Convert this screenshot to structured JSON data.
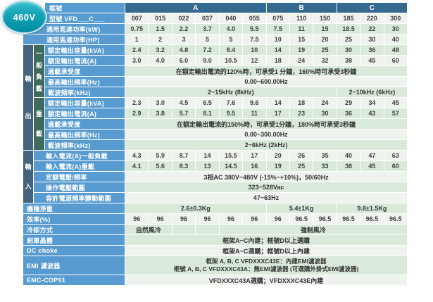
{
  "badge": {
    "text": "460V"
  },
  "colors": {
    "label_blue": "#579bd0",
    "header_blue": "#356a90",
    "band_slate": "#46637e",
    "band_teal": "#416a5e",
    "row_green": "#daeada",
    "row_white": "#eff3ee",
    "badge_teal": "#13a2b6"
  },
  "table": {
    "frame_row": {
      "label": "框號",
      "groups": [
        {
          "text": "A",
          "span": 6
        },
        {
          "text": "B",
          "span": 3
        },
        {
          "text": "C",
          "span": 3
        }
      ]
    },
    "bands": {
      "output": "輸出",
      "input": "輸入",
      "general": "一般負載",
      "heavy": "重載"
    },
    "rows": [
      {
        "label": "型號 VFD___C___",
        "zone": "top",
        "zebra": "w",
        "values": [
          "007",
          "015",
          "022",
          "037",
          "040",
          "055",
          "075",
          "110",
          "150",
          "185",
          "220",
          "300"
        ]
      },
      {
        "label": "適用馬達功率(kW)",
        "zone": "plain",
        "zebra": "g",
        "values": [
          "0.75",
          "1.5",
          "2.2",
          "3.7",
          "4.0",
          "5.5",
          "7.5",
          "11",
          "15",
          "18.5",
          "22",
          "30"
        ]
      },
      {
        "label": "適用馬達功率(HP)",
        "zone": "plain",
        "zebra": "w",
        "values": [
          "1",
          "2",
          "3",
          "5",
          "5",
          "7.5",
          "10",
          "15",
          "20",
          "25",
          "30",
          "40"
        ]
      },
      {
        "label": "額定輸出容量(kVA)",
        "zone": "out",
        "zebra": "g",
        "values": [
          "2.4",
          "3.2",
          "4.8",
          "7.2",
          "8.4",
          "10",
          "14",
          "19",
          "25",
          "30",
          "36",
          "48"
        ]
      },
      {
        "label": "額定輸出電流(A)",
        "zone": "out",
        "zebra": "w",
        "values": [
          "3.0",
          "4.0",
          "6.0",
          "9.0",
          "10.5",
          "12",
          "18",
          "24",
          "32",
          "38",
          "45",
          "60"
        ]
      },
      {
        "label": "過載承受度",
        "zone": "out",
        "zebra": "g",
        "spans": [
          {
            "text": "在額定輸出電流的120%時，可承受1 分鐘，160%時可承受3秒鐘",
            "span": 12
          }
        ]
      },
      {
        "label": "最高輸出頻率(Hz)",
        "zone": "out",
        "zebra": "w",
        "spans": [
          {
            "text": "0.00~600.00Hz",
            "span": 12
          }
        ]
      },
      {
        "label": "載波頻率(kHz)",
        "zone": "out",
        "zebra": "g",
        "spans": [
          {
            "text": "2~15kHz (8kHz)",
            "span": 9
          },
          {
            "text": "2~10kHz (6kHz)",
            "span": 3
          }
        ]
      },
      {
        "label": "額定輸出容量(kVA)",
        "zone": "out",
        "zebra": "w",
        "values": [
          "2.3",
          "3.0",
          "4.5",
          "6.5",
          "7.6",
          "9.6",
          "14",
          "18",
          "24",
          "29",
          "34",
          "45"
        ]
      },
      {
        "label": "額定輸出電流(A)",
        "zone": "out",
        "zebra": "g",
        "values": [
          "2.9",
          "3.8",
          "5.7",
          "8.1",
          "9.5",
          "11",
          "17",
          "23",
          "30",
          "36",
          "43",
          "57"
        ]
      },
      {
        "label": "過載承受度",
        "zone": "out",
        "zebra": "g",
        "spans": [
          {
            "text": "在額定輸出電流的150%時，可承受1分鐘，180%時可承受3秒鐘",
            "span": 12
          }
        ]
      },
      {
        "label": "最高輸出頻率(Hz)",
        "zone": "out",
        "zebra": "w",
        "spans": [
          {
            "text": "0.00~300.00Hz",
            "span": 12
          }
        ]
      },
      {
        "label": "載波頻率(kHz)",
        "zone": "out",
        "zebra": "g",
        "spans": [
          {
            "text": "2~6kHz (2kHz)",
            "span": 12
          }
        ]
      },
      {
        "label": "輸入電流(A)一般負載",
        "zone": "in",
        "zebra": "w",
        "values": [
          "4.3",
          "5.9",
          "8.7",
          "14",
          "15.5",
          "17",
          "20",
          "26",
          "35",
          "40",
          "47",
          "63"
        ]
      },
      {
        "label": "輸入電流(A)重載",
        "zone": "in",
        "zebra": "g",
        "values": [
          "4.1",
          "5.6",
          "8.3",
          "13",
          "14.5",
          "16",
          "19",
          "25",
          "33",
          "38",
          "45",
          "60"
        ]
      },
      {
        "label": "定額電壓/頻率",
        "zone": "in",
        "zebra": "w",
        "spans": [
          {
            "text": "3相AC 380V~480V (-15%~+10%)，50/60Hz",
            "span": 12
          }
        ]
      },
      {
        "label": "操作電壓範圍",
        "zone": "in",
        "zebra": "g",
        "spans": [
          {
            "text": "323~528Vac",
            "span": 12
          }
        ]
      },
      {
        "label": "容許電源頻率變動範圍",
        "zone": "in",
        "zebra": "w",
        "spans": [
          {
            "text": "47~63Hz",
            "span": 12
          }
        ]
      },
      {
        "label": "機種淨重",
        "zone": "bottom",
        "zebra": "g",
        "spans": [
          {
            "text": "2.6±0.3Kg",
            "span": 6
          },
          {
            "text": "5.4±1Kg",
            "span": 3
          },
          {
            "text": "9.8±1.5Kg",
            "span": 3
          }
        ]
      },
      {
        "label": "效率(%)",
        "zone": "bottom",
        "zebra": "w",
        "values": [
          "96",
          "96",
          "96",
          "96",
          "96",
          "96",
          "96",
          "96.5",
          "96.5",
          "96.5",
          "96.5",
          "96.5"
        ]
      },
      {
        "label": "冷卻方式",
        "zone": "bottom",
        "zebra": "g",
        "spans": [
          {
            "text": "自然風冷",
            "span": 2
          },
          {
            "text": "",
            "span": 1
          },
          {
            "text": "",
            "span": 1
          },
          {
            "text": "強制風冷",
            "span": 8
          }
        ]
      },
      {
        "label": "剎車晶體",
        "zone": "bottom",
        "zebra": "g",
        "spans": [
          {
            "text": "框架A~C內建；框號D以上選購",
            "span": 12
          }
        ]
      },
      {
        "label": "DC choke",
        "zone": "bottom",
        "zebra": "w",
        "spans": [
          {
            "text": "框架A~C選購；框號D以上內建",
            "span": 12
          }
        ]
      },
      {
        "label": "EMI 濾波器",
        "zone": "bottom",
        "zebra": "g",
        "spans": [
          {
            "lines": [
              "框架 A, B, C VFDXXXC43E：內建EMI濾波器",
              "框號 A, B, C VFDXXXC43A：無EMI濾波器 (可選購外掛式EMI濾波器)"
            ],
            "span": 12
          }
        ]
      },
      {
        "label": "EMC-COP01",
        "zone": "bottom",
        "zebra": "w",
        "spans": [
          {
            "text": "VFDXXXC43A選購；VFDXXXC43E內建",
            "span": 12
          }
        ]
      }
    ]
  }
}
